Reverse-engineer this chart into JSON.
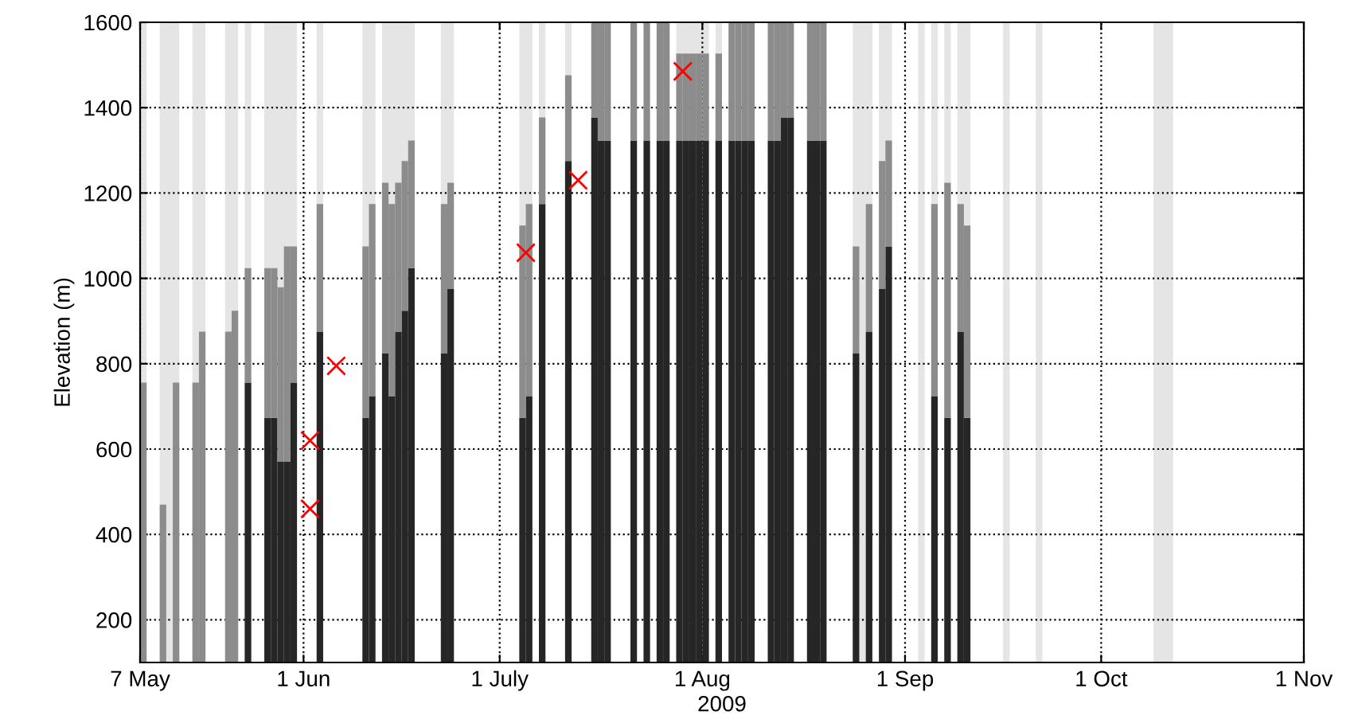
{
  "chart_data": {
    "type": "bar",
    "stacked": true,
    "xlabel": "2009",
    "ylabel": "Elevation (m)",
    "x": [
      "2009-05-07",
      "2009-05-10",
      "2009-05-12",
      "2009-05-15",
      "2009-05-16",
      "2009-05-20",
      "2009-05-21",
      "2009-05-23",
      "2009-05-26",
      "2009-05-27",
      "2009-05-28",
      "2009-05-29",
      "2009-05-30",
      "2009-06-03",
      "2009-06-10",
      "2009-06-11",
      "2009-06-13",
      "2009-06-14",
      "2009-06-15",
      "2009-06-16",
      "2009-06-17",
      "2009-06-22",
      "2009-06-23",
      "2009-07-04",
      "2009-07-05",
      "2009-07-07",
      "2009-07-11",
      "2009-07-15",
      "2009-07-16",
      "2009-07-17",
      "2009-07-21",
      "2009-07-23",
      "2009-07-25",
      "2009-07-26",
      "2009-07-28",
      "2009-07-29",
      "2009-07-30",
      "2009-07-31",
      "2009-08-01",
      "2009-08-03",
      "2009-08-05",
      "2009-08-06",
      "2009-08-07",
      "2009-08-08",
      "2009-08-11",
      "2009-08-12",
      "2009-08-13",
      "2009-08-14",
      "2009-08-17",
      "2009-08-18",
      "2009-08-19",
      "2009-08-24",
      "2009-08-26",
      "2009-08-28",
      "2009-08-29",
      "2009-09-05",
      "2009-09-07",
      "2009-09-09",
      "2009-09-10"
    ],
    "series": [
      {
        "color": "#262626",
        "values": [
          null,
          null,
          null,
          null,
          null,
          null,
          null,
          756,
          673,
          673,
          571,
          571,
          756,
          875,
          673,
          724,
          824,
          724,
          875,
          924,
          1024,
          824,
          975,
          673,
          724,
          1174,
          1275,
          1377,
          1323,
          1323,
          1323,
          1323,
          1323,
          1323,
          1323,
          1323,
          1323,
          1323,
          1323,
          1323,
          1323,
          1323,
          1323,
          1323,
          1323,
          1323,
          1377,
          1377,
          1323,
          1323,
          1323,
          824,
          875,
          975,
          1075,
          724,
          673,
          875,
          673
        ]
      },
      {
        "color": "#8c8c8c",
        "values": [
          756,
          470,
          756,
          756,
          875,
          875,
          924,
          268,
          351,
          351,
          408,
          504,
          319,
          299,
          402,
          450,
          400,
          450,
          349,
          351,
          299,
          350,
          249,
          451,
          450,
          203,
          201,
          223,
          277,
          277,
          277,
          277,
          277,
          277,
          204,
          204,
          204,
          204,
          204,
          204,
          277,
          277,
          277,
          277,
          277,
          277,
          223,
          223,
          277,
          277,
          277,
          251,
          299,
          300,
          248,
          450,
          551,
          299,
          451
        ]
      },
      {
        "type": "scatter",
        "marker": "cross",
        "color": "#ff0000",
        "x": [
          "2009-06-02",
          "2009-06-02",
          "2009-06-06",
          "2009-07-05",
          "2009-07-13",
          "2009-07-29"
        ],
        "values": [
          460,
          620,
          795,
          1060,
          1230,
          1485
        ]
      }
    ],
    "bands": [
      {
        "axis": "x",
        "from": "2009-05-07",
        "to": "2009-05-08",
        "color": "#e5e5e5"
      },
      {
        "axis": "x",
        "from": "2009-05-10",
        "to": "2009-05-13",
        "color": "#e5e5e5"
      },
      {
        "axis": "x",
        "from": "2009-05-15",
        "to": "2009-05-17",
        "color": "#e5e5e5"
      },
      {
        "axis": "x",
        "from": "2009-05-20",
        "to": "2009-05-22",
        "color": "#e5e5e5"
      },
      {
        "axis": "x",
        "from": "2009-05-23",
        "to": "2009-05-24",
        "color": "#e5e5e5"
      },
      {
        "axis": "x",
        "from": "2009-05-26",
        "to": "2009-05-31",
        "color": "#e5e5e5"
      },
      {
        "axis": "x",
        "from": "2009-06-03",
        "to": "2009-06-04",
        "color": "#e5e5e5"
      },
      {
        "axis": "x",
        "from": "2009-06-10",
        "to": "2009-06-12",
        "color": "#e5e5e5"
      },
      {
        "axis": "x",
        "from": "2009-06-13",
        "to": "2009-06-18",
        "color": "#e5e5e5"
      },
      {
        "axis": "x",
        "from": "2009-06-22",
        "to": "2009-06-24",
        "color": "#e5e5e5"
      },
      {
        "axis": "x",
        "from": "2009-07-04",
        "to": "2009-07-06",
        "color": "#e5e5e5"
      },
      {
        "axis": "x",
        "from": "2009-07-07",
        "to": "2009-07-08",
        "color": "#e5e5e5"
      },
      {
        "axis": "x",
        "from": "2009-07-11",
        "to": "2009-07-12",
        "color": "#e5e5e5"
      },
      {
        "axis": "x",
        "from": "2009-07-28",
        "to": "2009-08-02",
        "color": "#e5e5e5"
      },
      {
        "axis": "x",
        "from": "2009-08-03",
        "to": "2009-08-04",
        "color": "#e5e5e5"
      },
      {
        "axis": "x",
        "from": "2009-08-24",
        "to": "2009-08-27",
        "color": "#e5e5e5"
      },
      {
        "axis": "x",
        "from": "2009-08-28",
        "to": "2009-08-30",
        "color": "#e5e5e5"
      },
      {
        "axis": "x",
        "from": "2009-09-03",
        "to": "2009-09-04",
        "color": "#e5e5e5"
      },
      {
        "axis": "x",
        "from": "2009-09-05",
        "to": "2009-09-06",
        "color": "#e5e5e5"
      },
      {
        "axis": "x",
        "from": "2009-09-07",
        "to": "2009-09-08",
        "color": "#e5e5e5"
      },
      {
        "axis": "x",
        "from": "2009-09-09",
        "to": "2009-09-11",
        "color": "#e5e5e5"
      },
      {
        "axis": "x",
        "from": "2009-09-16",
        "to": "2009-09-17",
        "color": "#e5e5e5"
      },
      {
        "axis": "x",
        "from": "2009-09-21",
        "to": "2009-09-22",
        "color": "#e5e5e5"
      },
      {
        "axis": "x",
        "from": "2009-10-09",
        "to": "2009-10-12",
        "color": "#e5e5e5"
      }
    ],
    "xlim": [
      "2009-05-07",
      "2009-11-01"
    ],
    "xticks": [
      {
        "value": "2009-05-07",
        "label": "7 May"
      },
      {
        "value": "2009-06-01",
        "label": "1 Jun"
      },
      {
        "value": "2009-07-01",
        "label": "1 July"
      },
      {
        "value": "2009-08-01",
        "label": "1 Aug"
      },
      {
        "value": "2009-09-01",
        "label": "1 Sep"
      },
      {
        "value": "2009-10-01",
        "label": "1 Oct"
      },
      {
        "value": "2009-11-01",
        "label": "1 Nov"
      }
    ],
    "ylim": [
      100,
      1600
    ],
    "yticks": [
      200,
      400,
      600,
      800,
      1000,
      1200,
      1400,
      1600
    ],
    "grid": true
  }
}
